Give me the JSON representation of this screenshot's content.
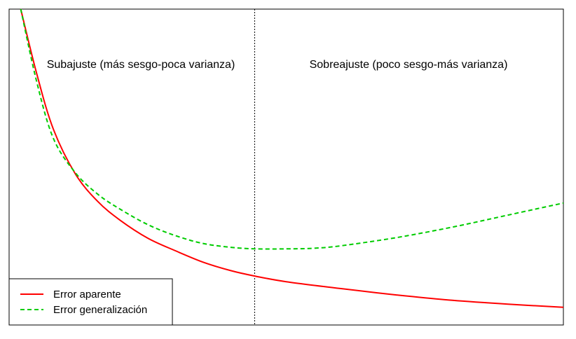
{
  "chart_data": {
    "type": "line",
    "title": "",
    "xlabel": "",
    "ylabel": "",
    "axes_visible": false,
    "grid": false,
    "xlim": [
      0,
      10
    ],
    "ylim": [
      0,
      10
    ],
    "divider_x": 4.43,
    "regions": [
      {
        "label": "Subajuste (más sesgo-poca varianza)"
      },
      {
        "label": "Sobreajuste (poco sesgo-más varianza)"
      }
    ],
    "legend": {
      "position": "bottom-left"
    },
    "series": [
      {
        "name": "Error aparente",
        "color": "#ff0000",
        "style": "solid",
        "x": [
          0.21,
          0.5,
          0.8,
          1.2,
          1.6,
          2.0,
          2.5,
          3.0,
          3.5,
          4.0,
          4.43,
          5.0,
          6.0,
          7.0,
          8.0,
          9.0,
          10.0
        ],
        "y": [
          10.0,
          7.94,
          6.19,
          4.77,
          3.91,
          3.32,
          2.75,
          2.35,
          1.99,
          1.72,
          1.55,
          1.37,
          1.15,
          0.95,
          0.78,
          0.66,
          0.56
        ]
      },
      {
        "name": "Error generalización",
        "color": "#00cc00",
        "style": "dashed",
        "x": [
          0.21,
          0.5,
          0.8,
          1.2,
          1.6,
          2.0,
          2.5,
          3.0,
          3.5,
          4.0,
          4.43,
          5.0,
          5.5,
          6.0,
          7.0,
          8.0,
          9.0,
          10.0
        ],
        "y": [
          10.0,
          7.68,
          5.9,
          4.81,
          4.14,
          3.67,
          3.18,
          2.83,
          2.58,
          2.46,
          2.41,
          2.41,
          2.43,
          2.51,
          2.77,
          3.1,
          3.48,
          3.86
        ]
      }
    ]
  }
}
